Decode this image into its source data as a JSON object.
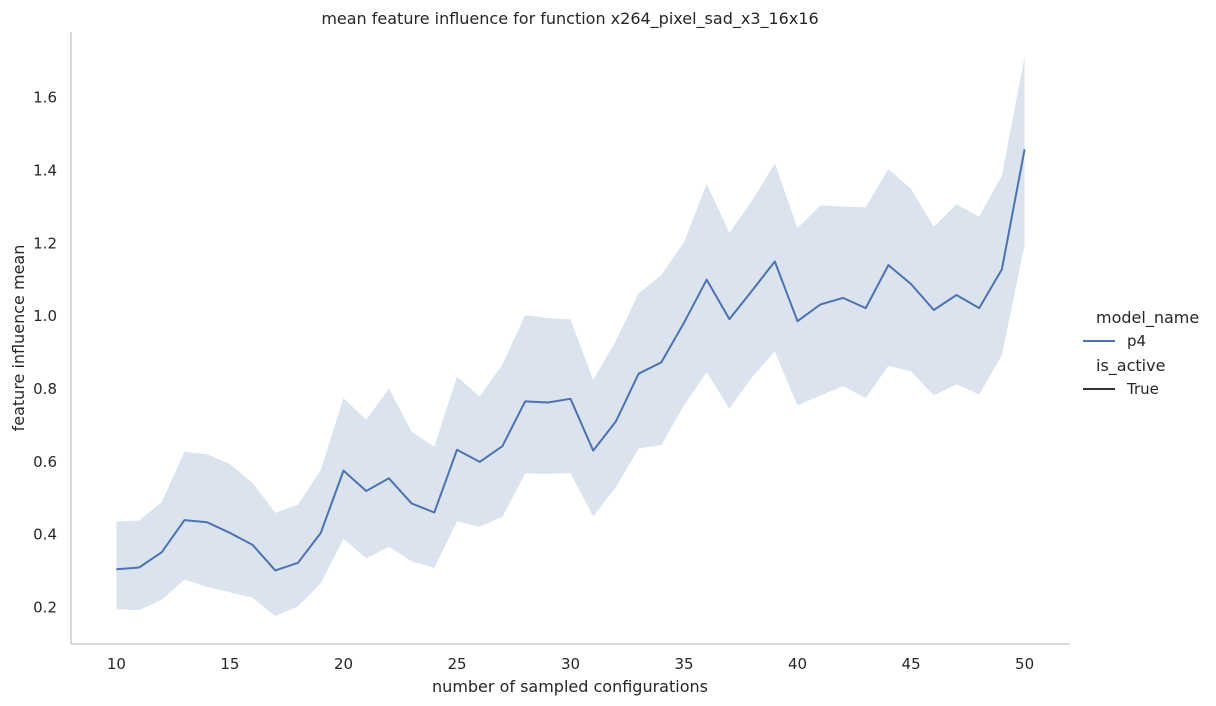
{
  "chart_data": {
    "type": "line",
    "title": "mean feature influence for function x264_pixel_sad_x3_16x16",
    "xlabel": "number of sampled configurations",
    "ylabel": "feature influence mean",
    "xlim": [
      8,
      52
    ],
    "ylim": [
      0.1,
      1.78
    ],
    "xticks": [
      10,
      15,
      20,
      25,
      30,
      35,
      40,
      45,
      50
    ],
    "yticks": [
      0.2,
      0.4,
      0.6,
      0.8,
      1.0,
      1.2,
      1.4,
      1.6
    ],
    "ytick_labels": [
      "0.2",
      "0.4",
      "0.6",
      "0.8",
      "1.0",
      "1.2",
      "1.4",
      "1.6"
    ],
    "grid": false,
    "legend_placement": "right",
    "legend": {
      "groups": [
        {
          "title": "model_name",
          "entries": [
            {
              "label": "p4",
              "color": "#4c72b0"
            }
          ]
        },
        {
          "title": "is_active",
          "entries": [
            {
              "label": "True",
              "color": "#333333"
            }
          ]
        }
      ]
    },
    "series": [
      {
        "name": "p4",
        "color": "#4c72b0",
        "band_color": "#4c72b0",
        "x": [
          10,
          11,
          12,
          13,
          14,
          15,
          16,
          17,
          18,
          19,
          20,
          21,
          22,
          23,
          24,
          25,
          26,
          27,
          28,
          29,
          30,
          31,
          32,
          33,
          34,
          35,
          36,
          37,
          38,
          39,
          40,
          41,
          42,
          43,
          44,
          45,
          46,
          47,
          48,
          49,
          50
        ],
        "y": [
          0.305,
          0.31,
          0.352,
          0.44,
          0.434,
          0.405,
          0.372,
          0.302,
          0.323,
          0.405,
          0.576,
          0.52,
          0.555,
          0.486,
          0.461,
          0.633,
          0.6,
          0.643,
          0.766,
          0.763,
          0.773,
          0.631,
          0.711,
          0.842,
          0.873,
          0.982,
          1.1,
          0.992,
          1.07,
          1.15,
          0.986,
          1.032,
          1.05,
          1.022,
          1.14,
          1.088,
          1.017,
          1.058,
          1.022,
          1.129,
          1.458
        ],
        "lower": [
          0.195,
          0.193,
          0.222,
          0.277,
          0.257,
          0.242,
          0.227,
          0.177,
          0.203,
          0.267,
          0.389,
          0.335,
          0.367,
          0.327,
          0.309,
          0.437,
          0.422,
          0.449,
          0.568,
          0.567,
          0.569,
          0.45,
          0.531,
          0.637,
          0.646,
          0.755,
          0.846,
          0.746,
          0.832,
          0.903,
          0.755,
          0.782,
          0.808,
          0.775,
          0.864,
          0.848,
          0.782,
          0.813,
          0.785,
          0.893,
          1.195
        ],
        "upper": [
          0.436,
          0.439,
          0.49,
          0.628,
          0.621,
          0.594,
          0.542,
          0.46,
          0.483,
          0.578,
          0.775,
          0.715,
          0.802,
          0.683,
          0.641,
          0.834,
          0.779,
          0.867,
          1.003,
          0.995,
          0.991,
          0.825,
          0.932,
          1.063,
          1.113,
          1.203,
          1.363,
          1.229,
          1.317,
          1.419,
          1.242,
          1.304,
          1.301,
          1.299,
          1.404,
          1.349,
          1.245,
          1.307,
          1.273,
          1.386,
          1.712
        ]
      }
    ]
  }
}
